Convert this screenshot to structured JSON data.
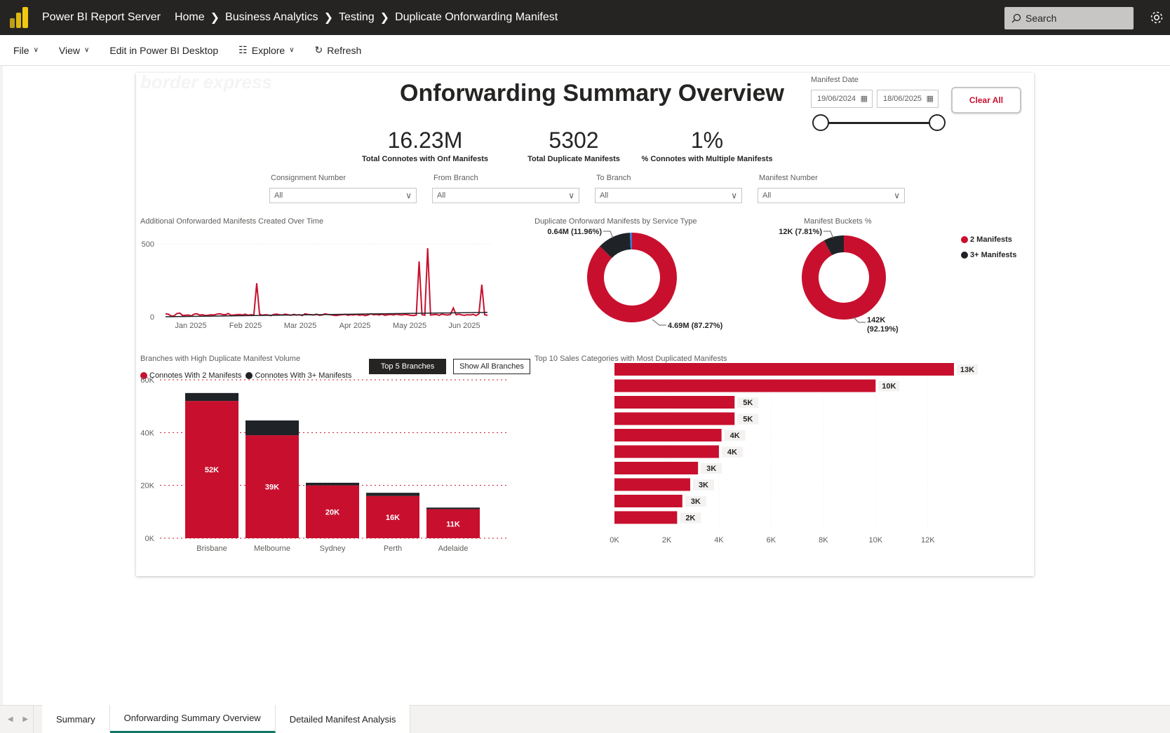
{
  "topbar": {
    "app_title": "Power BI Report Server",
    "breadcrumbs": [
      "Home",
      "Business Analytics",
      "Testing",
      "Duplicate Onforwarding Manifest"
    ],
    "search_placeholder": "Search"
  },
  "menubar": {
    "file": "File",
    "view": "View",
    "edit": "Edit in Power BI Desktop",
    "explore": "Explore",
    "refresh": "Refresh"
  },
  "report": {
    "watermark": "border express",
    "title": "Onforwarding Summary Overview",
    "manifest_date_label": "Manifest Date",
    "date_from": "19/06/2024",
    "date_to": "18/06/2025",
    "slider_range": [
      0,
      1
    ],
    "clear_all": "Clear All",
    "kpis": [
      {
        "value": "16.23M",
        "label": "Total Connotes with Onf Manifests"
      },
      {
        "value": "5302",
        "label": "Total Duplicate Manifests"
      },
      {
        "value": "1%",
        "label": "% Connotes with Multiple Manifests"
      }
    ],
    "filters": [
      {
        "label": "Consignment Number",
        "value": "All"
      },
      {
        "label": "From Branch",
        "value": "All"
      },
      {
        "label": "To Branch",
        "value": "All"
      },
      {
        "label": "Manifest Number",
        "value": "All"
      }
    ],
    "top5_btn": "Top 5 Branches",
    "all_btn": "Show All Branches"
  },
  "colors": {
    "red": "#c8102e",
    "dark": "#1f2328",
    "blue": "#3a7bd5"
  },
  "chart_data": [
    {
      "id": "line",
      "type": "line",
      "title": "Additional Onforwarded Manifests Created Over Time",
      "x_ticks": [
        "Jan 2025",
        "Feb 2025",
        "Mar 2025",
        "Apr 2025",
        "May 2025",
        "Jun 2025"
      ],
      "y_ticks": [
        "500",
        "0"
      ],
      "ylim": [
        0,
        500
      ],
      "series_values": [
        20,
        18,
        5,
        6,
        22,
        25,
        8,
        10,
        12,
        6,
        18,
        20,
        12,
        14,
        8,
        10,
        14,
        12,
        18,
        20,
        16,
        14,
        22,
        10,
        12,
        14,
        16,
        12,
        18,
        10,
        14,
        12,
        230,
        18,
        10,
        14,
        12,
        8,
        16,
        18,
        14,
        12,
        18,
        14,
        10,
        16,
        12,
        14,
        8,
        20,
        16,
        14,
        12,
        18,
        10,
        12,
        20,
        16,
        14,
        10,
        8,
        12,
        14,
        16,
        10,
        14,
        12,
        16,
        10,
        14,
        8,
        12,
        20,
        14,
        16,
        12,
        18,
        10,
        14,
        16,
        12,
        18,
        14,
        12,
        16,
        14,
        10,
        8,
        12,
        380,
        14,
        10,
        470,
        12,
        14,
        16,
        10,
        18,
        14,
        12,
        16,
        60,
        14,
        18,
        12,
        10,
        14,
        12,
        16,
        8,
        20,
        220,
        14,
        10
      ],
      "trend": [
        0,
        30
      ]
    },
    {
      "id": "donut-service",
      "type": "pie",
      "title": "Duplicate Onforward Manifests by Service Type",
      "slices": [
        {
          "value": 87.27,
          "label": "4.69M (87.27%)",
          "color": "#c8102e"
        },
        {
          "value": 11.96,
          "label": "0.64M (11.96%)",
          "color": "#1f2328"
        },
        {
          "value": 0.77,
          "label": "",
          "color": "#3a7bd5"
        }
      ]
    },
    {
      "id": "donut-buckets",
      "type": "pie",
      "title": "Manifest Buckets %",
      "slices": [
        {
          "value": 92.19,
          "label": "142K",
          "label2": "(92.19%)",
          "color": "#c8102e"
        },
        {
          "value": 7.81,
          "label": "12K (7.81%)",
          "color": "#1f2328"
        }
      ],
      "legend": [
        "2 Manifests",
        "3+ Manifests"
      ]
    },
    {
      "id": "stacked-bar",
      "type": "bar",
      "title": "Branches with High Duplicate Manifest Volume",
      "categories": [
        "Brisbane",
        "Melbourne",
        "Sydney",
        "Perth",
        "Adelaide"
      ],
      "series": [
        {
          "name": "Connotes With 2 Manifests",
          "values": [
            52,
            39,
            20,
            16,
            11
          ],
          "labels": [
            "52K",
            "39K",
            "20K",
            "16K",
            "11K"
          ],
          "color": "#c8102e"
        },
        {
          "name": "Connotes With 3+ Manifests",
          "values": [
            3,
            5.6,
            1,
            1.2,
            0.6
          ],
          "color": "#1f2328"
        }
      ],
      "y_ticks": [
        "60K",
        "40K",
        "20K",
        "0K"
      ],
      "ylim": [
        0,
        60
      ]
    },
    {
      "id": "hbar",
      "type": "bar",
      "title": "Top 10 Sales Categories with Most Duplicated Manifests",
      "values": [
        13,
        10,
        4.6,
        4.6,
        4.1,
        4.0,
        3.2,
        2.9,
        2.6,
        2.4
      ],
      "labels": [
        "13K",
        "10K",
        "5K",
        "5K",
        "4K",
        "4K",
        "3K",
        "3K",
        "3K",
        "2K"
      ],
      "x_ticks": [
        "0K",
        "2K",
        "4K",
        "6K",
        "8K",
        "10K",
        "12K"
      ],
      "xlim": [
        0,
        13
      ]
    }
  ],
  "tabs": [
    "Summary",
    "Onforwarding Summary Overview",
    "Detailed Manifest Analysis"
  ]
}
